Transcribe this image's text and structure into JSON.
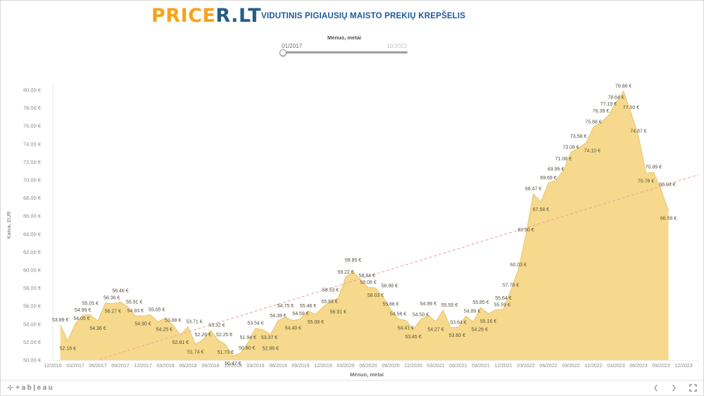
{
  "header": {
    "logo_price": "PRICE",
    "logo_rlt": "R.LT",
    "title": "VIDUTINIS PIGIAUSIŲ MAISTO PREKIŲ KREPŠELIS"
  },
  "slider": {
    "label": "Mėnuo, metai",
    "start_value": "01/2017",
    "end_value": "10/2023"
  },
  "chart_data": {
    "type": "area",
    "title": "Vidutinis pigiausių maisto prekių krepšelis",
    "xlabel": "Mėnuo, metai",
    "ylabel": "Kaina, EUR",
    "ylim": [
      50,
      80
    ],
    "y_tick_step": 2,
    "grid": false,
    "legend": "none",
    "x_start": "2017-01",
    "x_interval": "month",
    "x_tick_labels": [
      "12/2016",
      "03/2017",
      "06/2017",
      "09/2017",
      "12/2017",
      "03/2018",
      "06/2018",
      "09/2018",
      "12/2018",
      "03/2019",
      "06/2019",
      "09/2019",
      "12/2019",
      "03/2020",
      "06/2020",
      "09/2020",
      "12/2020",
      "03/2021",
      "06/2021",
      "09/2021",
      "12/2021",
      "03/2022",
      "06/2022",
      "09/2022",
      "12/2022",
      "03/2023",
      "06/2023",
      "09/2023",
      "12/2023"
    ],
    "y_tick_labels": [
      "50.00 €",
      "52.00 €",
      "54.00 €",
      "56.00 €",
      "58.00 €",
      "60.00 €",
      "62.00 €",
      "64.00 €",
      "66.00 €",
      "68.00 €",
      "70.00 €",
      "72.00 €",
      "74.00 €",
      "76.00 €",
      "78.00 €",
      "80.00 €"
    ],
    "value_suffix": " €",
    "values": [
      53.89,
      52.16,
      54.05,
      54.99,
      55.05,
      54.36,
      56.36,
      56.27,
      56.46,
      55.91,
      54.93,
      54.9,
      55.05,
      54.25,
      54.69,
      53.88,
      52.81,
      53.71,
      51.74,
      52.26,
      53.32,
      52.25,
      51.73,
      50.47,
      50.8,
      51.94,
      53.54,
      53.37,
      52.86,
      54.39,
      54.75,
      54.4,
      54.59,
      55.46,
      55.08,
      55.93,
      56.53,
      56.91,
      59.22,
      59.85,
      58.84,
      58.08,
      58.03,
      56.98,
      55.66,
      54.58,
      54.41,
      53.45,
      54.5,
      54.99,
      54.27,
      55.55,
      53.6,
      53.64,
      54.89,
      54.26,
      55.85,
      55.16,
      55.59,
      55.64,
      57.78,
      60.03,
      63.9,
      68.47,
      67.58,
      69.69,
      69.95,
      71.08,
      73.08,
      73.58,
      74.1,
      75.88,
      76.39,
      77.19,
      78.64,
      79.88,
      77.5,
      74.87,
      70.76,
      70.89,
      68.94,
      66.59
    ],
    "trend_line": {
      "style": "dashed",
      "from": {
        "index": 5.2,
        "value": 50.1
      },
      "to": {
        "index": 85,
        "value": 70.6
      }
    }
  },
  "colors": {
    "area_fill": "#F6D98C",
    "area_edge": "#E9C46E",
    "trend": "#EE9FA0",
    "data_label": "#55503C",
    "axis_text": "#8a8a8a",
    "axis_title": "#6e6e6e"
  },
  "footer": {
    "brand_mark": "✛",
    "brand_word": "+ab|eau",
    "prev_label": "❮",
    "next_label": "❯"
  }
}
